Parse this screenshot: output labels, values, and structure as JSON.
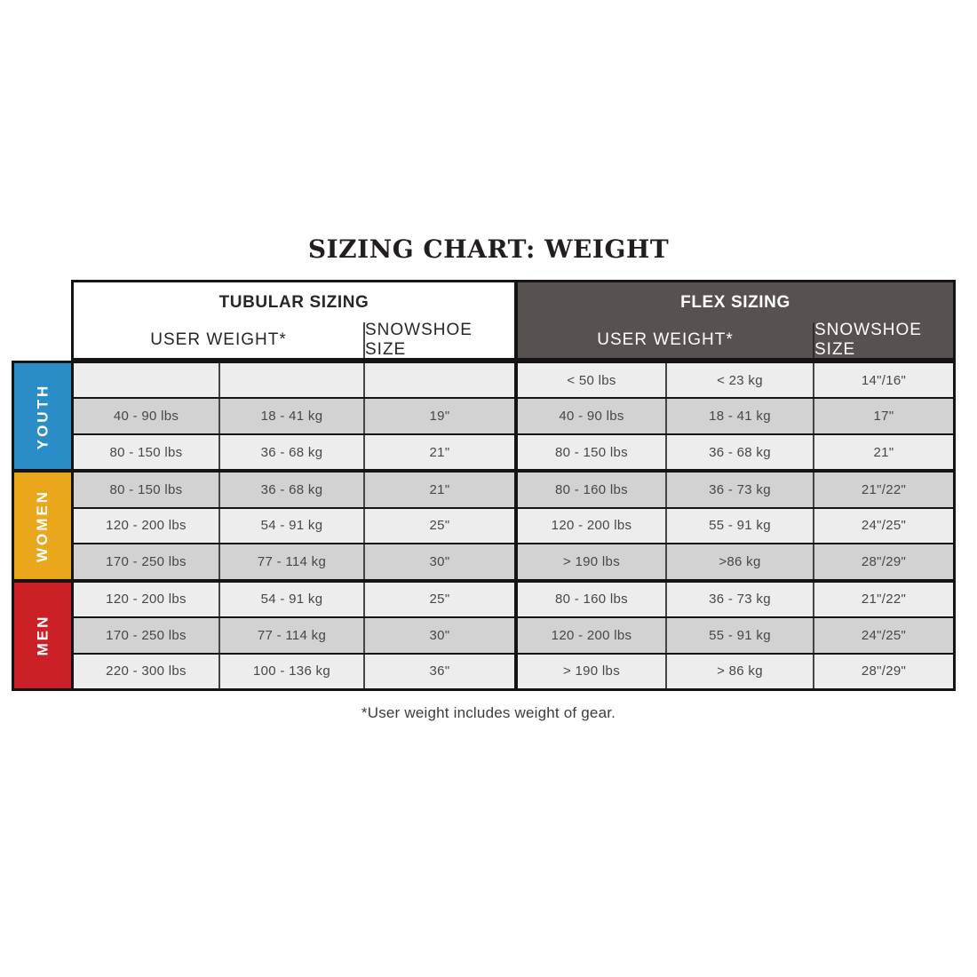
{
  "page": {
    "title": "SIZING CHART: WEIGHT",
    "footnote": "*User weight includes weight of gear."
  },
  "header": {
    "tubular": {
      "title": "TUBULAR SIZING",
      "user_weight": "USER WEIGHT*",
      "snowshoe_size": "SNOWSHOE SIZE"
    },
    "flex": {
      "title": "FLEX SIZING",
      "user_weight": "USER WEIGHT*",
      "snowshoe_size": "SNOWSHOE SIZE"
    }
  },
  "colors": {
    "youth": "#2b8dc8",
    "women": "#eaa71c",
    "men": "#cb2026",
    "flex_header_bg": "#575250",
    "row_light": "#ededed",
    "row_dark": "#d2d2d2",
    "border": "#161314"
  },
  "chart_data": {
    "type": "table",
    "title": "SIZING CHART: WEIGHT",
    "footnote": "*User weight includes weight of gear.",
    "column_groups": [
      "TUBULAR SIZING",
      "FLEX SIZING"
    ],
    "columns": [
      "USER WEIGHT (lbs)",
      "USER WEIGHT (kg)",
      "SNOWSHOE SIZE",
      "USER WEIGHT (lbs)",
      "USER WEIGHT (kg)",
      "SNOWSHOE SIZE"
    ],
    "groups": [
      {
        "label": "YOUTH",
        "color": "#2b8dc8",
        "rows": [
          {
            "tubular": [
              "",
              "",
              ""
            ],
            "flex": [
              "< 50 lbs",
              "< 23 kg",
              "14\"/16\""
            ]
          },
          {
            "tubular": [
              "40 - 90 lbs",
              "18 - 41 kg",
              "19\""
            ],
            "flex": [
              "40 - 90 lbs",
              "18 - 41 kg",
              "17\""
            ]
          },
          {
            "tubular": [
              "80 - 150 lbs",
              "36 - 68 kg",
              "21\""
            ],
            "flex": [
              "80 - 150 lbs",
              "36 - 68 kg",
              "21\""
            ]
          }
        ]
      },
      {
        "label": "WOMEN",
        "color": "#eaa71c",
        "rows": [
          {
            "tubular": [
              "80 - 150 lbs",
              "36 - 68 kg",
              "21\""
            ],
            "flex": [
              "80 - 160 lbs",
              "36 - 73 kg",
              "21\"/22\""
            ]
          },
          {
            "tubular": [
              "120 - 200 lbs",
              "54 - 91 kg",
              "25\""
            ],
            "flex": [
              "120 - 200 lbs",
              "55 - 91 kg",
              "24\"/25\""
            ]
          },
          {
            "tubular": [
              "170 - 250 lbs",
              "77 - 114 kg",
              "30\""
            ],
            "flex": [
              "> 190 lbs",
              ">86 kg",
              "28\"/29\""
            ]
          }
        ]
      },
      {
        "label": "MEN",
        "color": "#cb2026",
        "rows": [
          {
            "tubular": [
              "120 - 200 lbs",
              "54 - 91 kg",
              "25\""
            ],
            "flex": [
              "80 - 160 lbs",
              "36 - 73 kg",
              "21\"/22\""
            ]
          },
          {
            "tubular": [
              "170 - 250 lbs",
              "77 - 114 kg",
              "30\""
            ],
            "flex": [
              "120 - 200 lbs",
              "55 - 91 kg",
              "24\"/25\""
            ]
          },
          {
            "tubular": [
              "220 - 300 lbs",
              "100 - 136 kg",
              "36\""
            ],
            "flex": [
              "> 190 lbs",
              "> 86 kg",
              "28\"/29\""
            ]
          }
        ]
      }
    ]
  }
}
